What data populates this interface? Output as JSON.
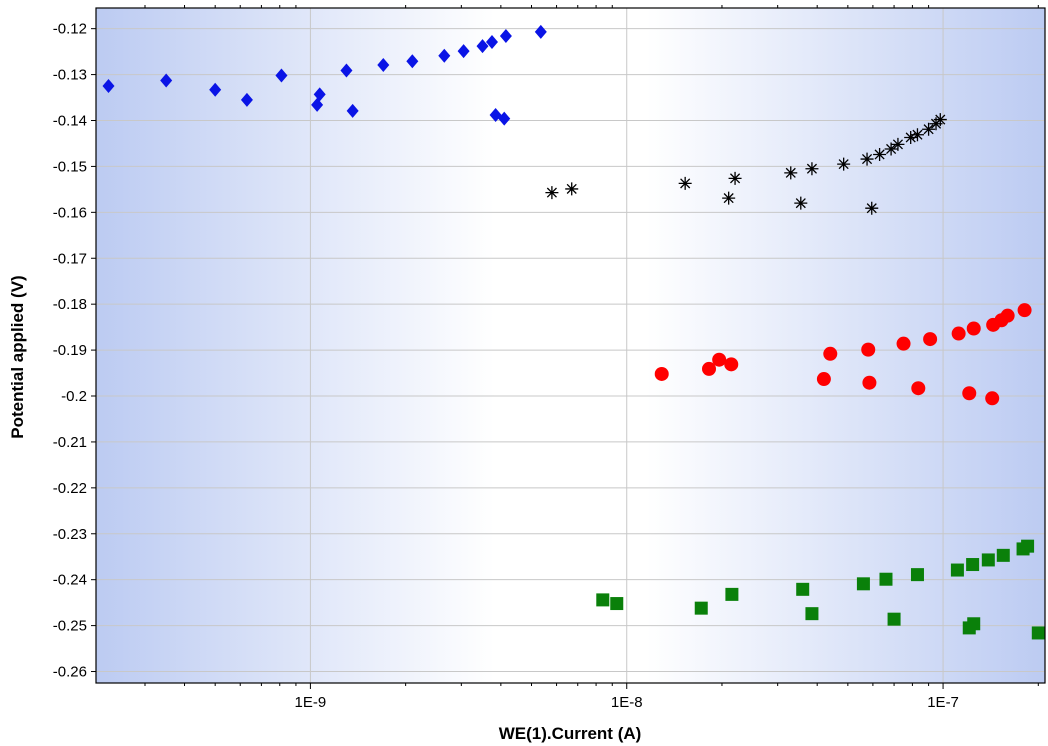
{
  "chart_data": {
    "type": "scatter",
    "xlabel": "WE(1).Current (A)",
    "ylabel": "Potential applied (V)",
    "x_scale": "log",
    "xlim": [
      2.1e-10,
      2.1e-07
    ],
    "ylim": [
      -0.2625,
      -0.1155
    ],
    "x_ticks": [
      {
        "value": 1e-09,
        "label": "1E-9"
      },
      {
        "value": 1e-08,
        "label": "1E-8"
      },
      {
        "value": 1e-07,
        "label": "1E-7"
      }
    ],
    "y_ticks": [
      {
        "value": -0.12,
        "label": "-0.12"
      },
      {
        "value": -0.13,
        "label": "-0.13"
      },
      {
        "value": -0.14,
        "label": "-0.14"
      },
      {
        "value": -0.15,
        "label": "-0.15"
      },
      {
        "value": -0.16,
        "label": "-0.16"
      },
      {
        "value": -0.17,
        "label": "-0.17"
      },
      {
        "value": -0.18,
        "label": "-0.18"
      },
      {
        "value": -0.19,
        "label": "-0.19"
      },
      {
        "value": -0.2,
        "label": "-0.2"
      },
      {
        "value": -0.21,
        "label": "-0.21"
      },
      {
        "value": -0.22,
        "label": "-0.22"
      },
      {
        "value": -0.23,
        "label": "-0.23"
      },
      {
        "value": -0.24,
        "label": "-0.24"
      },
      {
        "value": -0.25,
        "label": "-0.25"
      },
      {
        "value": -0.26,
        "label": "-0.26"
      }
    ],
    "grid": true,
    "background": "blue-white-blue horizontal gradient",
    "series": [
      {
        "marker": "diamond",
        "color": "#0a14e6",
        "points": [
          [
            2.3e-10,
            -0.1325
          ],
          [
            3.5e-10,
            -0.1313
          ],
          [
            5e-10,
            -0.1333
          ],
          [
            6.3e-10,
            -0.1355
          ],
          [
            8.1e-10,
            -0.1302
          ],
          [
            1.05e-09,
            -0.1366
          ],
          [
            1.07e-09,
            -0.1343
          ],
          [
            1.3e-09,
            -0.1291
          ],
          [
            1.36e-09,
            -0.1379
          ],
          [
            1.7e-09,
            -0.1279
          ],
          [
            2.1e-09,
            -0.1271
          ],
          [
            2.65e-09,
            -0.1259
          ],
          [
            3.05e-09,
            -0.1249
          ],
          [
            3.5e-09,
            -0.1238
          ],
          [
            3.75e-09,
            -0.1229
          ],
          [
            3.85e-09,
            -0.1388
          ],
          [
            4.1e-09,
            -0.1396
          ],
          [
            4.15e-09,
            -0.1216
          ],
          [
            5.35e-09,
            -0.1207
          ]
        ]
      },
      {
        "marker": "asterisk",
        "color": "#000000",
        "points": [
          [
            5.8e-09,
            -0.1557
          ],
          [
            6.7e-09,
            -0.1549
          ],
          [
            1.53e-08,
            -0.1537
          ],
          [
            2.1e-08,
            -0.1569
          ],
          [
            2.2e-08,
            -0.1526
          ],
          [
            3.3e-08,
            -0.1514
          ],
          [
            3.55e-08,
            -0.158
          ],
          [
            3.85e-08,
            -0.1505
          ],
          [
            4.85e-08,
            -0.1495
          ],
          [
            5.75e-08,
            -0.1484
          ],
          [
            5.95e-08,
            -0.1591
          ],
          [
            6.3e-08,
            -0.1474
          ],
          [
            6.85e-08,
            -0.1462
          ],
          [
            7.2e-08,
            -0.1452
          ],
          [
            7.9e-08,
            -0.1437
          ],
          [
            8.3e-08,
            -0.1431
          ],
          [
            9e-08,
            -0.1419
          ],
          [
            9.5e-08,
            -0.1407
          ],
          [
            9.8e-08,
            -0.1398
          ]
        ]
      },
      {
        "marker": "circle",
        "color": "#ff0000",
        "points": [
          [
            1.29e-08,
            -0.1952
          ],
          [
            1.82e-08,
            -0.1941
          ],
          [
            1.96e-08,
            -0.1921
          ],
          [
            2.14e-08,
            -0.1931
          ],
          [
            4.2e-08,
            -0.1963
          ],
          [
            4.4e-08,
            -0.1908
          ],
          [
            5.8e-08,
            -0.1899
          ],
          [
            5.85e-08,
            -0.1971
          ],
          [
            7.5e-08,
            -0.1886
          ],
          [
            8.35e-08,
            -0.1983
          ],
          [
            9.1e-08,
            -0.1876
          ],
          [
            1.12e-07,
            -0.1864
          ],
          [
            1.21e-07,
            -0.1994
          ],
          [
            1.25e-07,
            -0.1853
          ],
          [
            1.43e-07,
            -0.2005
          ],
          [
            1.44e-07,
            -0.1845
          ],
          [
            1.53e-07,
            -0.1835
          ],
          [
            1.6e-07,
            -0.1825
          ],
          [
            1.81e-07,
            -0.1813
          ]
        ]
      },
      {
        "marker": "square",
        "color": "#0a800a",
        "points": [
          [
            8.4e-09,
            -0.2444
          ],
          [
            9.3e-09,
            -0.2452
          ],
          [
            1.72e-08,
            -0.2462
          ],
          [
            2.15e-08,
            -0.2432
          ],
          [
            3.6e-08,
            -0.2421
          ],
          [
            3.85e-08,
            -0.2474
          ],
          [
            5.6e-08,
            -0.2409
          ],
          [
            6.6e-08,
            -0.2399
          ],
          [
            7e-08,
            -0.2486
          ],
          [
            8.3e-08,
            -0.2389
          ],
          [
            1.11e-07,
            -0.2379
          ],
          [
            1.21e-07,
            -0.2505
          ],
          [
            1.24e-07,
            -0.2367
          ],
          [
            1.25e-07,
            -0.2496
          ],
          [
            1.39e-07,
            -0.2357
          ],
          [
            1.55e-07,
            -0.2347
          ],
          [
            1.79e-07,
            -0.2333
          ],
          [
            1.85e-07,
            -0.2327
          ],
          [
            2e-07,
            -0.2516
          ]
        ]
      }
    ]
  }
}
